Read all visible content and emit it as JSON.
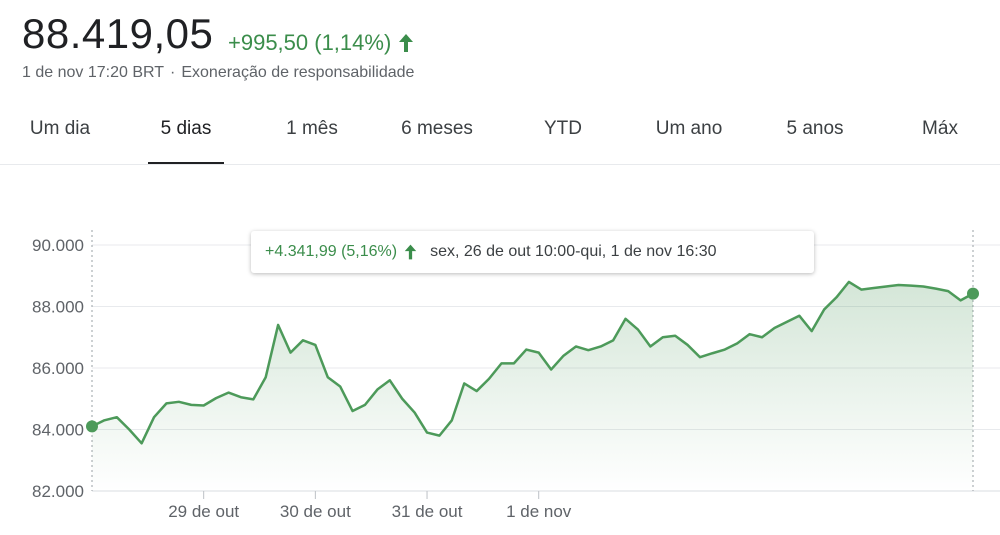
{
  "header": {
    "price": "88.419,05",
    "change": "+995,50 (1,14%)",
    "timestamp": "1 de nov 17:20 BRT",
    "separator": "·",
    "disclaimer": "Exoneração de responsabilidade"
  },
  "tabs": [
    {
      "label": "Um dia",
      "active": false
    },
    {
      "label": "5 dias",
      "active": true
    },
    {
      "label": "1 mês",
      "active": false
    },
    {
      "label": "6 meses",
      "active": false
    },
    {
      "label": "YTD",
      "active": false
    },
    {
      "label": "Um ano",
      "active": false
    },
    {
      "label": "5 anos",
      "active": false
    },
    {
      "label": "Máx",
      "active": false
    }
  ],
  "tooltip": {
    "change": "+4.341,99 (5,16%)",
    "range": "sex, 26 de out 10:00-qui, 1 de nov 16:30"
  },
  "colors": {
    "positive": "#3b8d4b",
    "line": "#4d9a5a",
    "grid": "#e8eaed",
    "axis_text": "#5f6368"
  },
  "chart_data": {
    "type": "line",
    "y_ticks": [
      "90.000",
      "88.000",
      "86.000",
      "84.000",
      "82.000"
    ],
    "y_tick_values": [
      90000,
      88000,
      86000,
      84000,
      82000
    ],
    "ylim": [
      82000,
      90000
    ],
    "x_labels": [
      "29 de out",
      "30 de out",
      "31 de out",
      "1 de nov"
    ],
    "x_label_index": [
      9,
      18,
      27,
      36
    ],
    "series": [
      {
        "values": [
          84100,
          84300,
          84400,
          84000,
          83550,
          84400,
          84850,
          84900,
          84800,
          84780,
          85020,
          85200,
          85050,
          84980,
          85700,
          87400,
          86500,
          86900,
          86750,
          85700,
          85400,
          84600,
          84800,
          85300,
          85600,
          85000,
          84550,
          83900,
          83800,
          84300,
          85500,
          85250,
          85650,
          86150,
          86150,
          86600,
          86500,
          85950,
          86400,
          86700,
          86580,
          86700,
          86900,
          87600,
          87250,
          86700,
          87000,
          87050,
          86750,
          86350,
          86480,
          86600,
          86800,
          87100,
          87000,
          87300,
          87500,
          87700,
          87200,
          87900,
          88300,
          88800,
          88550,
          88600,
          88650,
          88700,
          88680,
          88650,
          88580,
          88500,
          88200,
          88420
        ]
      }
    ]
  }
}
